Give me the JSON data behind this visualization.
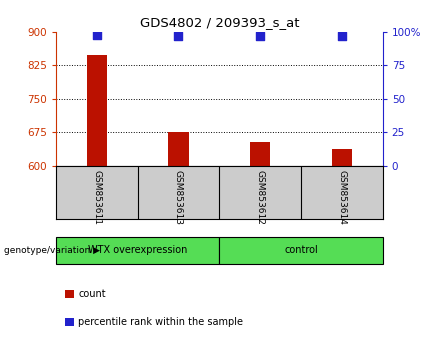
{
  "title": "GDS4802 / 209393_s_at",
  "samples": [
    "GSM853611",
    "GSM853613",
    "GSM853612",
    "GSM853614"
  ],
  "counts": [
    848,
    675,
    653,
    638
  ],
  "percentile_ranks": [
    98,
    97,
    97,
    97
  ],
  "ylim_left": [
    600,
    900
  ],
  "yticks_left": [
    600,
    675,
    750,
    825,
    900
  ],
  "yticks_right": [
    0,
    25,
    50,
    75,
    100
  ],
  "bar_color": "#bb1100",
  "dot_color": "#2222cc",
  "groups": [
    {
      "label": "WTX overexpression",
      "spans": [
        0,
        1
      ]
    },
    {
      "label": "control",
      "spans": [
        2,
        3
      ]
    }
  ],
  "group_label_prefix": "genotype/variation",
  "left_tick_color": "#cc3300",
  "right_tick_color": "#2222cc",
  "background_color": "#ffffff",
  "plot_bg_color": "#ffffff",
  "sample_label_bg": "#cccccc",
  "group_bg_color": "#55dd55",
  "bar_width": 0.25,
  "legend_count_label": "count",
  "legend_pct_label": "percentile rank within the sample",
  "dot_size": 28
}
